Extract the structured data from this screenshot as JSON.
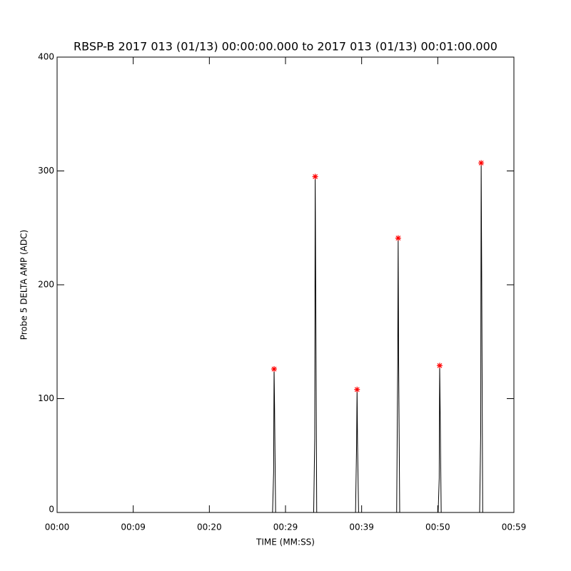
{
  "chart_data": {
    "type": "line",
    "title": "RBSP-B 2017 013 (01/13) 00:00:00.000 to 2017 013 (01/13) 00:01:00.000",
    "xlabel": "TIME (MM:SS)",
    "ylabel": "Probe 5 DELTA AMP (ADC)",
    "xlim": [
      0,
      60
    ],
    "xticks": [
      {
        "value": 0,
        "label": "00:00"
      },
      {
        "value": 10,
        "label": "00:09"
      },
      {
        "value": 20,
        "label": "00:20"
      },
      {
        "value": 30,
        "label": "00:29"
      },
      {
        "value": 40,
        "label": "00:39"
      },
      {
        "value": 50,
        "label": "00:50"
      },
      {
        "value": 60,
        "label": "00:59"
      }
    ],
    "ylim": [
      0,
      400
    ],
    "yticks": [
      0,
      100,
      200,
      300,
      400
    ],
    "series": [
      {
        "color": "#000000",
        "marker": "none",
        "x": [
          26.5,
          28.3,
          28.44,
          28.5,
          28.56,
          28.7,
          33.7,
          33.84,
          33.9,
          33.96,
          34.1,
          39.2,
          39.34,
          39.4,
          39.46,
          39.6,
          44.6,
          44.74,
          44.8,
          44.86,
          45.0,
          50.05,
          50.19,
          50.25,
          50.31,
          50.45,
          55.5,
          55.64,
          55.7,
          55.76,
          55.9,
          60
        ],
        "values": [
          0,
          0,
          35,
          126,
          95,
          0,
          0,
          65,
          295,
          212,
          0,
          0,
          60,
          108,
          62,
          0,
          0,
          130,
          241,
          132,
          0,
          0,
          30,
          129,
          93,
          0,
          0,
          70,
          307,
          222,
          0,
          0
        ]
      },
      {
        "color": "#ff0000",
        "marker": "star",
        "x": [
          28.5,
          33.9,
          39.4,
          44.8,
          50.25,
          55.7
        ],
        "values": [
          126,
          295,
          108,
          241,
          129,
          307
        ]
      }
    ]
  }
}
